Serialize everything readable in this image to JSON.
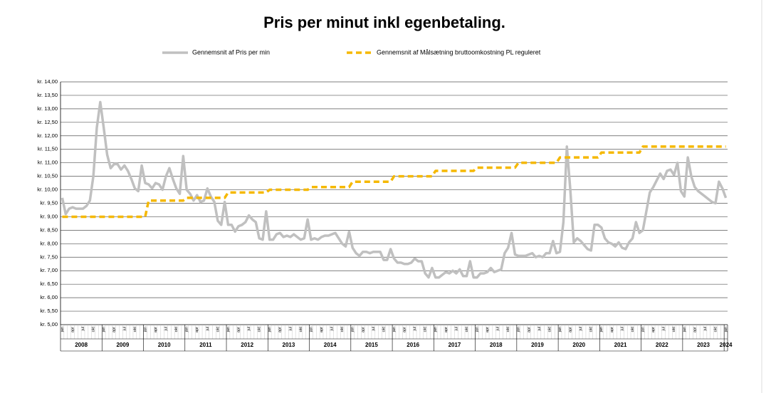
{
  "chart_data": {
    "type": "line",
    "title": "Pris per minut inkl egenbetaling.",
    "categories": [
      "jan",
      null,
      null,
      "apr",
      null,
      null,
      "jul",
      null,
      null,
      "okt",
      null,
      null,
      "jan",
      null,
      null,
      "apr",
      null,
      null,
      "jul",
      null,
      null,
      "okt",
      null,
      null,
      "jan",
      null,
      null,
      "apr",
      null,
      null,
      "jul",
      null,
      null,
      "okt",
      null,
      null,
      "jan",
      null,
      null,
      "apr",
      null,
      null,
      "jul",
      null,
      null,
      "okt",
      null,
      null,
      "jan",
      null,
      null,
      "apr",
      null,
      null,
      "jul",
      null,
      null,
      "okt",
      null,
      null,
      "jan",
      null,
      null,
      "apr",
      null,
      null,
      "jul",
      null,
      null,
      "okt",
      null,
      null,
      "jan",
      null,
      null,
      "apr",
      null,
      null,
      "jul",
      null,
      null,
      "okt",
      null,
      null,
      "jan",
      null,
      null,
      "apr",
      null,
      null,
      "jul",
      null,
      null,
      "okt",
      null,
      null,
      "jan",
      null,
      null,
      "apr",
      null,
      null,
      "jul",
      null,
      null,
      "okt",
      null,
      null,
      "jan",
      null,
      null,
      "apr",
      null,
      null,
      "jul",
      null,
      null,
      "okt",
      null,
      null,
      "jan",
      null,
      null,
      "apr",
      null,
      null,
      "jul",
      null,
      null,
      "okt",
      null,
      null,
      "jan",
      null,
      null,
      "apr",
      null,
      null,
      "jul",
      null,
      null,
      "okt",
      null,
      null,
      "jan",
      null,
      null,
      "apr",
      null,
      null,
      "jul",
      null,
      null,
      "okt",
      null,
      null,
      "jan",
      null,
      null,
      "apr",
      null,
      null,
      "jul",
      null,
      null,
      "okt",
      null,
      null,
      "jan",
      null,
      null,
      "apr",
      null,
      null,
      "jul",
      null,
      null,
      "okt",
      null,
      null,
      "jan",
      null,
      null,
      "apr",
      null,
      null,
      "jul",
      null,
      null,
      "okt",
      null,
      null,
      "jan"
    ],
    "years": [
      "2008",
      "2009",
      "2010",
      "2011",
      "2012",
      "2013",
      "2014",
      "2015",
      "2016",
      "2017",
      "2018",
      "2019",
      "2020",
      "2021",
      "2022",
      "2023",
      "2024"
    ],
    "series": [
      {
        "name": "Gennemsnit af Pris per min",
        "color": "#c0c0c0",
        "dash": false,
        "values": [
          9.7,
          9.1,
          9.3,
          9.35,
          9.3,
          9.3,
          9.3,
          9.4,
          9.6,
          10.5,
          12.3,
          13.25,
          12.3,
          11.3,
          10.8,
          10.95,
          10.95,
          10.75,
          10.9,
          10.7,
          10.4,
          10.05,
          9.95,
          10.9,
          10.25,
          10.2,
          10.05,
          10.25,
          10.2,
          10.0,
          10.5,
          10.8,
          10.4,
          10.05,
          9.85,
          11.25,
          10.0,
          9.85,
          9.6,
          9.8,
          9.55,
          9.6,
          10.05,
          9.75,
          9.55,
          8.85,
          8.7,
          9.55,
          8.7,
          8.7,
          8.45,
          8.65,
          8.7,
          8.8,
          9.05,
          8.9,
          8.8,
          8.2,
          8.15,
          9.2,
          8.15,
          8.15,
          8.35,
          8.4,
          8.25,
          8.3,
          8.25,
          8.35,
          8.25,
          8.15,
          8.2,
          8.9,
          8.15,
          8.2,
          8.15,
          8.25,
          8.3,
          8.3,
          8.35,
          8.4,
          8.2,
          8.0,
          7.9,
          8.45,
          7.85,
          7.65,
          7.55,
          7.7,
          7.7,
          7.65,
          7.7,
          7.7,
          7.7,
          7.4,
          7.4,
          7.8,
          7.45,
          7.3,
          7.3,
          7.25,
          7.25,
          7.3,
          7.45,
          7.35,
          7.35,
          6.9,
          6.75,
          7.1,
          6.75,
          6.75,
          6.85,
          6.95,
          6.9,
          7.0,
          6.9,
          7.05,
          6.8,
          6.8,
          7.35,
          6.75,
          6.75,
          6.9,
          6.9,
          6.95,
          7.1,
          6.95,
          7.0,
          7.05,
          7.65,
          7.85,
          8.4,
          7.6,
          7.55,
          7.55,
          7.55,
          7.6,
          7.65,
          7.5,
          7.55,
          7.5,
          7.65,
          7.65,
          8.1,
          7.65,
          7.7,
          8.8,
          11.6,
          10.0,
          8.05,
          8.2,
          8.1,
          7.95,
          7.8,
          7.75,
          8.7,
          8.7,
          8.6,
          8.2,
          8.05,
          8.0,
          7.9,
          8.05,
          7.85,
          7.8,
          8.05,
          8.2,
          8.8,
          8.4,
          8.5,
          9.2,
          9.9,
          10.1,
          10.35,
          10.6,
          10.4,
          10.7,
          10.75,
          10.55,
          11.0,
          9.95,
          9.75,
          11.2,
          10.5,
          10.1,
          9.95,
          9.85,
          9.75,
          9.65,
          9.55,
          9.5,
          10.3,
          10.05,
          9.7
        ]
      },
      {
        "name": "Gennemsnit af Målsætning bruttoomkostning PL reguleret",
        "color": "#f5b800",
        "dash": true,
        "values": [
          9.0,
          9.0,
          9.0,
          9.0,
          9.0,
          9.0,
          9.0,
          9.0,
          9.0,
          9.0,
          9.0,
          9.0,
          9.0,
          9.0,
          9.0,
          9.0,
          9.0,
          9.0,
          9.0,
          9.0,
          9.0,
          9.0,
          9.0,
          9.0,
          9.0,
          9.6,
          9.6,
          9.6,
          9.6,
          9.6,
          9.6,
          9.6,
          9.6,
          9.6,
          9.6,
          9.6,
          9.7,
          9.7,
          9.7,
          9.7,
          9.7,
          9.7,
          9.7,
          9.7,
          9.7,
          9.7,
          9.7,
          9.7,
          9.9,
          9.9,
          9.9,
          9.9,
          9.9,
          9.9,
          9.9,
          9.9,
          9.9,
          9.9,
          9.9,
          9.9,
          10.0,
          10.0,
          10.0,
          10.0,
          10.0,
          10.0,
          10.0,
          10.0,
          10.0,
          10.0,
          10.0,
          10.0,
          10.1,
          10.1,
          10.1,
          10.1,
          10.1,
          10.1,
          10.1,
          10.1,
          10.1,
          10.1,
          10.1,
          10.1,
          10.3,
          10.3,
          10.3,
          10.3,
          10.3,
          10.3,
          10.3,
          10.3,
          10.3,
          10.3,
          10.3,
          10.3,
          10.5,
          10.5,
          10.5,
          10.5,
          10.5,
          10.5,
          10.5,
          10.5,
          10.5,
          10.5,
          10.5,
          10.5,
          10.7,
          10.7,
          10.7,
          10.7,
          10.7,
          10.7,
          10.7,
          10.7,
          10.7,
          10.7,
          10.7,
          10.7,
          10.82,
          10.82,
          10.82,
          10.82,
          10.82,
          10.82,
          10.82,
          10.82,
          10.82,
          10.82,
          10.82,
          10.82,
          11.0,
          11.0,
          11.0,
          11.0,
          11.0,
          11.0,
          11.0,
          11.0,
          11.0,
          11.0,
          11.0,
          11.0,
          11.2,
          11.2,
          11.2,
          11.2,
          11.2,
          11.2,
          11.2,
          11.2,
          11.2,
          11.2,
          11.2,
          11.2,
          11.38,
          11.38,
          11.38,
          11.38,
          11.38,
          11.38,
          11.38,
          11.38,
          11.38,
          11.38,
          11.38,
          11.38,
          11.6,
          11.6,
          11.6,
          11.6,
          11.6,
          11.6,
          11.6,
          11.6,
          11.6,
          11.6,
          11.6,
          11.6,
          11.6,
          11.6,
          11.6,
          11.6,
          11.6,
          11.6,
          11.6,
          11.6,
          11.6,
          11.6,
          11.6,
          11.6,
          11.6
        ]
      }
    ],
    "ylim": [
      5,
      14
    ],
    "yticks": [
      {
        "value": 5,
        "label": "kr. 5,00"
      },
      {
        "value": 5.5,
        "label": "kr. 5,50"
      },
      {
        "value": 6,
        "label": "kr. 6,00"
      },
      {
        "value": 6.5,
        "label": "kr. 6,50"
      },
      {
        "value": 7,
        "label": "kr. 7,00"
      },
      {
        "value": 7.5,
        "label": "kr. 7,50"
      },
      {
        "value": 8,
        "label": "kr. 8,00"
      },
      {
        "value": 8.5,
        "label": "kr. 8,50"
      },
      {
        "value": 9,
        "label": "kr. 9,00"
      },
      {
        "value": 9.5,
        "label": "kr. 9,50"
      },
      {
        "value": 10,
        "label": "kr. 10,00"
      },
      {
        "value": 10.5,
        "label": "kr. 10,50"
      },
      {
        "value": 11,
        "label": "kr. 11,00"
      },
      {
        "value": 11.5,
        "label": "kr. 11,50"
      },
      {
        "value": 12,
        "label": "kr. 12,00"
      },
      {
        "value": 12.5,
        "label": "kr. 12,50"
      },
      {
        "value": 13,
        "label": "kr. 13,00"
      },
      {
        "value": 13.5,
        "label": "kr. 13,50"
      },
      {
        "value": 14,
        "label": "kr. 14,00"
      }
    ],
    "grid": true
  }
}
